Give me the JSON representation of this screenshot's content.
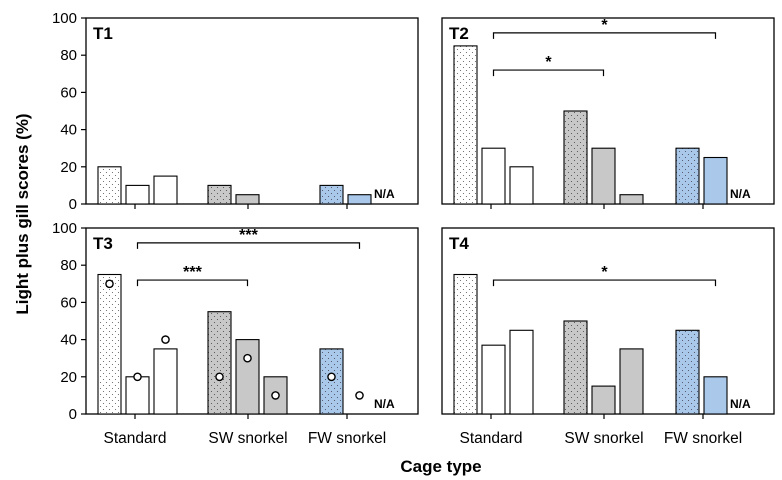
{
  "colors": {
    "frame": "#000000",
    "standard_fill": "#ffffff",
    "sw_fill": "#c8c8c8",
    "fw_fill": "#a9c8ea",
    "pattern_dots": "#555555"
  },
  "chart_data": {
    "type": "bar",
    "xlabel": "Cage type",
    "ylabel": "Light plus gill scores (%)",
    "ylim": [
      0,
      100
    ],
    "yticks": [
      "0",
      "20",
      "40",
      "60",
      "80",
      "100"
    ],
    "categories": [
      "Standard",
      "SW snorkel",
      "FW snorkel"
    ],
    "na_label": "N/A",
    "panels": [
      {
        "label": "T1",
        "groups": [
          {
            "values": [
              20,
              10,
              15
            ]
          },
          {
            "values": [
              10,
              5,
              null
            ]
          },
          {
            "values": [
              10,
              5
            ]
          }
        ],
        "markers": [],
        "brackets": []
      },
      {
        "label": "T2",
        "groups": [
          {
            "values": [
              85,
              30,
              20
            ]
          },
          {
            "values": [
              50,
              30,
              5
            ]
          },
          {
            "values": [
              30,
              25
            ]
          }
        ],
        "markers": [],
        "brackets": [
          {
            "from": [
              0,
              1
            ],
            "to": [
              2,
              1
            ],
            "y": 92,
            "label": "*"
          },
          {
            "from": [
              0,
              1
            ],
            "to": [
              1,
              1
            ],
            "y": 72,
            "label": "*"
          }
        ]
      },
      {
        "label": "T3",
        "groups": [
          {
            "values": [
              75,
              20,
              35
            ]
          },
          {
            "values": [
              55,
              40,
              20
            ]
          },
          {
            "values": [
              35,
              null
            ]
          }
        ],
        "markers": [
          {
            "g": 0,
            "b": 0,
            "value": 70
          },
          {
            "g": 0,
            "b": 1,
            "value": 20
          },
          {
            "g": 0,
            "b": 2,
            "value": 40
          },
          {
            "g": 1,
            "b": 0,
            "value": 20
          },
          {
            "g": 1,
            "b": 1,
            "value": 30
          },
          {
            "g": 1,
            "b": 2,
            "value": 10
          },
          {
            "g": 2,
            "b": 0,
            "value": 20
          },
          {
            "g": 2,
            "b": 1,
            "value": 10
          }
        ],
        "brackets": [
          {
            "from": [
              0,
              1
            ],
            "to": [
              2,
              1
            ],
            "y": 92,
            "label": "***"
          },
          {
            "from": [
              0,
              1
            ],
            "to": [
              1,
              1
            ],
            "y": 72,
            "label": "***"
          }
        ]
      },
      {
        "label": "T4",
        "groups": [
          {
            "values": [
              75,
              37,
              45
            ]
          },
          {
            "values": [
              50,
              15,
              35
            ]
          },
          {
            "values": [
              45,
              20
            ]
          }
        ],
        "markers": [],
        "brackets": [
          {
            "from": [
              0,
              1
            ],
            "to": [
              2,
              1
            ],
            "y": 72,
            "label": "*"
          }
        ]
      }
    ]
  }
}
